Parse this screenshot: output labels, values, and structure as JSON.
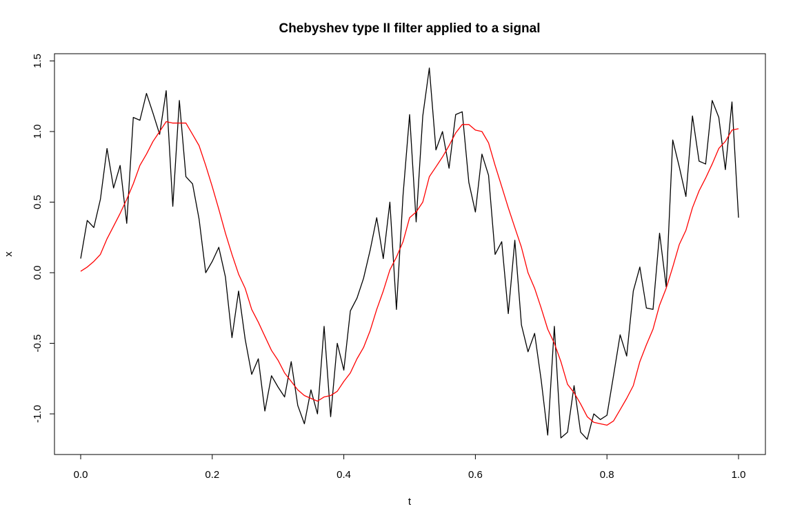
{
  "chart_data": {
    "type": "line",
    "title": "Chebyshev type II filter applied to a signal",
    "xlabel": "t",
    "ylabel": "x",
    "xlim": [
      0,
      1
    ],
    "ylim": [
      -1.3,
      1.5
    ],
    "xticks": [
      0.0,
      0.2,
      0.4,
      0.6,
      0.8,
      1.0
    ],
    "xtick_labels": [
      "0.0",
      "0.2",
      "0.4",
      "0.6",
      "0.8",
      "1.0"
    ],
    "yticks": [
      -1.0,
      -0.5,
      0.0,
      0.5,
      1.0,
      1.5
    ],
    "ytick_labels": [
      "-1.0",
      "-0.5",
      "0.0",
      "0.5",
      "1.0",
      "1.5"
    ],
    "grid": false,
    "legend": "none",
    "x": [
      0.0,
      0.01,
      0.02,
      0.03,
      0.04,
      0.05,
      0.06,
      0.07,
      0.08,
      0.09,
      0.1,
      0.11,
      0.12,
      0.13,
      0.14,
      0.15,
      0.16,
      0.17,
      0.18,
      0.19,
      0.2,
      0.21,
      0.22,
      0.23,
      0.24,
      0.25,
      0.26,
      0.27,
      0.28,
      0.29,
      0.3,
      0.31,
      0.32,
      0.33,
      0.34,
      0.35,
      0.36,
      0.37,
      0.38,
      0.39,
      0.4,
      0.41,
      0.42,
      0.43,
      0.44,
      0.45,
      0.46,
      0.47,
      0.48,
      0.49,
      0.5,
      0.51,
      0.52,
      0.53,
      0.54,
      0.55,
      0.56,
      0.57,
      0.58,
      0.59,
      0.6,
      0.61,
      0.62,
      0.63,
      0.64,
      0.65,
      0.66,
      0.67,
      0.68,
      0.69,
      0.7,
      0.71,
      0.72,
      0.73,
      0.74,
      0.75,
      0.76,
      0.77,
      0.78,
      0.79,
      0.8,
      0.81,
      0.82,
      0.83,
      0.84,
      0.85,
      0.86,
      0.87,
      0.88,
      0.89,
      0.9,
      0.91,
      0.92,
      0.93,
      0.94,
      0.95,
      0.96,
      0.97,
      0.98,
      0.99,
      1.0
    ],
    "series": [
      {
        "color": "#000000",
        "values": [
          0.1,
          0.37,
          0.32,
          0.52,
          0.88,
          0.6,
          0.76,
          0.35,
          1.1,
          1.08,
          1.27,
          1.13,
          0.98,
          1.29,
          0.47,
          1.22,
          0.68,
          0.63,
          0.38,
          0.0,
          0.08,
          0.18,
          -0.03,
          -0.46,
          -0.13,
          -0.47,
          -0.72,
          -0.61,
          -0.98,
          -0.73,
          -0.81,
          -0.88,
          -0.63,
          -0.94,
          -1.07,
          -0.83,
          -1.0,
          -0.38,
          -1.02,
          -0.5,
          -0.69,
          -0.27,
          -0.18,
          -0.04,
          0.16,
          0.39,
          0.1,
          0.5,
          -0.26,
          0.55,
          1.12,
          0.36,
          1.11,
          1.45,
          0.87,
          1.0,
          0.74,
          1.12,
          1.14,
          0.64,
          0.43,
          0.84,
          0.69,
          0.13,
          0.22,
          -0.29,
          0.23,
          -0.37,
          -0.56,
          -0.43,
          -0.76,
          -1.15,
          -0.38,
          -1.17,
          -1.13,
          -0.8,
          -1.13,
          -1.18,
          -1.0,
          -1.04,
          -1.01,
          -0.73,
          -0.44,
          -0.59,
          -0.13,
          0.04,
          -0.25,
          -0.26,
          0.28,
          -0.1,
          0.94,
          0.75,
          0.54,
          1.11,
          0.79,
          0.77,
          1.22,
          1.1,
          0.73,
          1.21,
          0.39
        ]
      },
      {
        "color": "#ff0000",
        "values": [
          0.01,
          0.04,
          0.08,
          0.13,
          0.24,
          0.33,
          0.42,
          0.52,
          0.63,
          0.76,
          0.84,
          0.93,
          1.0,
          1.07,
          1.06,
          1.06,
          1.06,
          0.98,
          0.9,
          0.76,
          0.61,
          0.45,
          0.28,
          0.13,
          -0.01,
          -0.11,
          -0.26,
          -0.35,
          -0.45,
          -0.55,
          -0.62,
          -0.71,
          -0.77,
          -0.83,
          -0.87,
          -0.89,
          -0.91,
          -0.88,
          -0.87,
          -0.84,
          -0.77,
          -0.71,
          -0.61,
          -0.53,
          -0.41,
          -0.26,
          -0.13,
          0.02,
          0.11,
          0.22,
          0.39,
          0.43,
          0.5,
          0.68,
          0.75,
          0.82,
          0.9,
          0.99,
          1.05,
          1.05,
          1.01,
          1.0,
          0.92,
          0.76,
          0.61,
          0.46,
          0.32,
          0.18,
          0.0,
          -0.11,
          -0.25,
          -0.4,
          -0.5,
          -0.63,
          -0.79,
          -0.85,
          -0.93,
          -1.02,
          -1.06,
          -1.07,
          -1.08,
          -1.05,
          -0.97,
          -0.89,
          -0.8,
          -0.63,
          -0.51,
          -0.4,
          -0.23,
          -0.11,
          0.04,
          0.2,
          0.3,
          0.46,
          0.58,
          0.67,
          0.77,
          0.88,
          0.93,
          1.01,
          1.02
        ]
      }
    ]
  }
}
